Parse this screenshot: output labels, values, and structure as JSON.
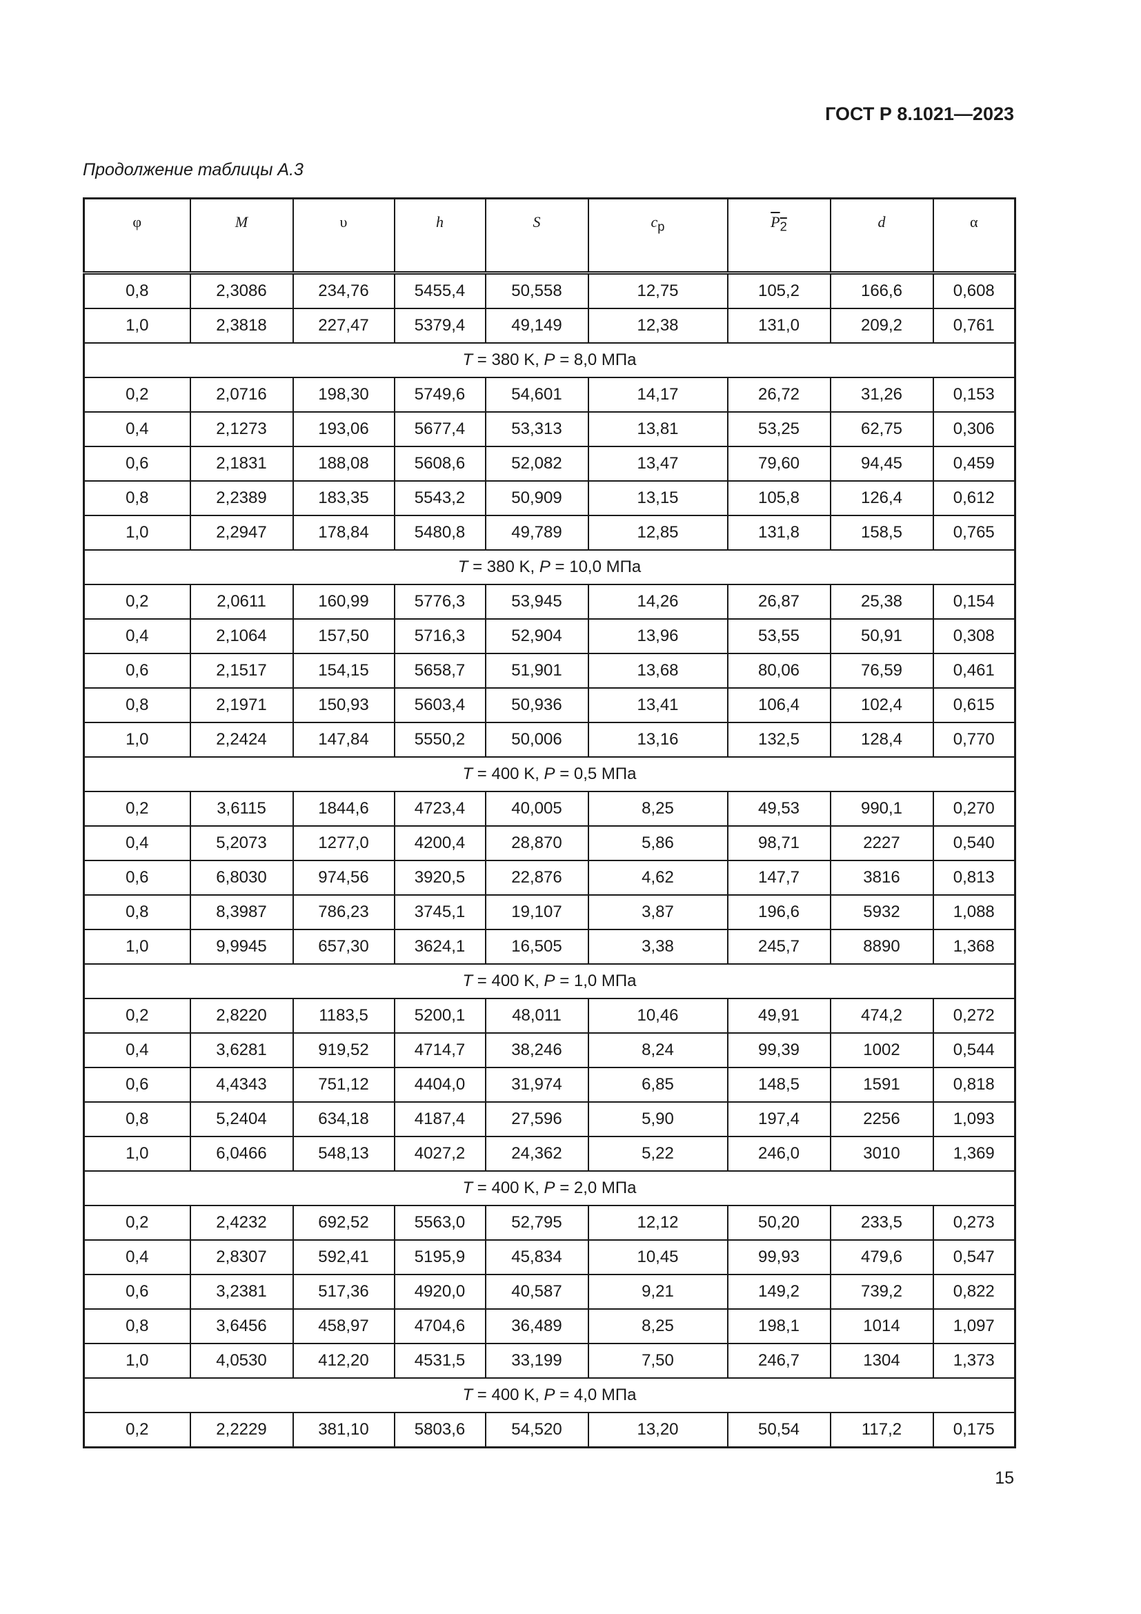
{
  "header": {
    "document_id": "ГОСТ Р 8.1021—2023"
  },
  "caption": "Продолжение таблицы А.3",
  "table": {
    "columns": [
      {
        "symbol": "φ",
        "sub": ""
      },
      {
        "symbol": "M",
        "sub": ""
      },
      {
        "symbol": "υ",
        "sub": ""
      },
      {
        "symbol": "h",
        "sub": ""
      },
      {
        "symbol": "S",
        "sub": ""
      },
      {
        "symbol": "c",
        "sub": "p"
      },
      {
        "symbol": "P",
        "sub": "2",
        "overline": true
      },
      {
        "symbol": "d",
        "sub": ""
      },
      {
        "symbol": "α",
        "sub": ""
      }
    ],
    "rows": [
      {
        "cells": [
          "0,8",
          "2,3086",
          "234,76",
          "5455,4",
          "50,558",
          "12,75",
          "105,2",
          "166,6",
          "0,608"
        ]
      },
      {
        "cells": [
          "1,0",
          "2,3818",
          "227,47",
          "5379,4",
          "49,149",
          "12,38",
          "131,0",
          "209,2",
          "0,761"
        ]
      },
      {
        "section": {
          "t_sym": "T",
          "t_val": " = 380 K, ",
          "p_sym": "P",
          "p_val": " = 8,0 МПа"
        }
      },
      {
        "cells": [
          "0,2",
          "2,0716",
          "198,30",
          "5749,6",
          "54,601",
          "14,17",
          "26,72",
          "31,26",
          "0,153"
        ]
      },
      {
        "cells": [
          "0,4",
          "2,1273",
          "193,06",
          "5677,4",
          "53,313",
          "13,81",
          "53,25",
          "62,75",
          "0,306"
        ]
      },
      {
        "cells": [
          "0,6",
          "2,1831",
          "188,08",
          "5608,6",
          "52,082",
          "13,47",
          "79,60",
          "94,45",
          "0,459"
        ]
      },
      {
        "cells": [
          "0,8",
          "2,2389",
          "183,35",
          "5543,2",
          "50,909",
          "13,15",
          "105,8",
          "126,4",
          "0,612"
        ]
      },
      {
        "cells": [
          "1,0",
          "2,2947",
          "178,84",
          "5480,8",
          "49,789",
          "12,85",
          "131,8",
          "158,5",
          "0,765"
        ]
      },
      {
        "section": {
          "t_sym": "T",
          "t_val": " = 380 K, ",
          "p_sym": "P",
          "p_val": " = 10,0 МПа"
        }
      },
      {
        "cells": [
          "0,2",
          "2,0611",
          "160,99",
          "5776,3",
          "53,945",
          "14,26",
          "26,87",
          "25,38",
          "0,154"
        ]
      },
      {
        "cells": [
          "0,4",
          "2,1064",
          "157,50",
          "5716,3",
          "52,904",
          "13,96",
          "53,55",
          "50,91",
          "0,308"
        ]
      },
      {
        "cells": [
          "0,6",
          "2,1517",
          "154,15",
          "5658,7",
          "51,901",
          "13,68",
          "80,06",
          "76,59",
          "0,461"
        ]
      },
      {
        "cells": [
          "0,8",
          "2,1971",
          "150,93",
          "5603,4",
          "50,936",
          "13,41",
          "106,4",
          "102,4",
          "0,615"
        ]
      },
      {
        "cells": [
          "1,0",
          "2,2424",
          "147,84",
          "5550,2",
          "50,006",
          "13,16",
          "132,5",
          "128,4",
          "0,770"
        ]
      },
      {
        "section": {
          "t_sym": "T",
          "t_val": " = 400 K, ",
          "p_sym": "P",
          "p_val": " = 0,5 МПа"
        }
      },
      {
        "cells": [
          "0,2",
          "3,6115",
          "1844,6",
          "4723,4",
          "40,005",
          "8,25",
          "49,53",
          "990,1",
          "0,270"
        ]
      },
      {
        "cells": [
          "0,4",
          "5,2073",
          "1277,0",
          "4200,4",
          "28,870",
          "5,86",
          "98,71",
          "2227",
          "0,540"
        ]
      },
      {
        "cells": [
          "0,6",
          "6,8030",
          "974,56",
          "3920,5",
          "22,876",
          "4,62",
          "147,7",
          "3816",
          "0,813"
        ]
      },
      {
        "cells": [
          "0,8",
          "8,3987",
          "786,23",
          "3745,1",
          "19,107",
          "3,87",
          "196,6",
          "5932",
          "1,088"
        ]
      },
      {
        "cells": [
          "1,0",
          "9,9945",
          "657,30",
          "3624,1",
          "16,505",
          "3,38",
          "245,7",
          "8890",
          "1,368"
        ]
      },
      {
        "section": {
          "t_sym": "T",
          "t_val": " = 400 K, ",
          "p_sym": "P",
          "p_val": " = 1,0 МПа"
        }
      },
      {
        "cells": [
          "0,2",
          "2,8220",
          "1183,5",
          "5200,1",
          "48,011",
          "10,46",
          "49,91",
          "474,2",
          "0,272"
        ]
      },
      {
        "cells": [
          "0,4",
          "3,6281",
          "919,52",
          "4714,7",
          "38,246",
          "8,24",
          "99,39",
          "1002",
          "0,544"
        ]
      },
      {
        "cells": [
          "0,6",
          "4,4343",
          "751,12",
          "4404,0",
          "31,974",
          "6,85",
          "148,5",
          "1591",
          "0,818"
        ]
      },
      {
        "cells": [
          "0,8",
          "5,2404",
          "634,18",
          "4187,4",
          "27,596",
          "5,90",
          "197,4",
          "2256",
          "1,093"
        ]
      },
      {
        "cells": [
          "1,0",
          "6,0466",
          "548,13",
          "4027,2",
          "24,362",
          "5,22",
          "246,0",
          "3010",
          "1,369"
        ]
      },
      {
        "section": {
          "t_sym": "T",
          "t_val": " = 400 K, ",
          "p_sym": "P",
          "p_val": " = 2,0 МПа"
        }
      },
      {
        "cells": [
          "0,2",
          "2,4232",
          "692,52",
          "5563,0",
          "52,795",
          "12,12",
          "50,20",
          "233,5",
          "0,273"
        ]
      },
      {
        "cells": [
          "0,4",
          "2,8307",
          "592,41",
          "5195,9",
          "45,834",
          "10,45",
          "99,93",
          "479,6",
          "0,547"
        ]
      },
      {
        "cells": [
          "0,6",
          "3,2381",
          "517,36",
          "4920,0",
          "40,587",
          "9,21",
          "149,2",
          "739,2",
          "0,822"
        ]
      },
      {
        "cells": [
          "0,8",
          "3,6456",
          "458,97",
          "4704,6",
          "36,489",
          "8,25",
          "198,1",
          "1014",
          "1,097"
        ]
      },
      {
        "cells": [
          "1,0",
          "4,0530",
          "412,20",
          "4531,5",
          "33,199",
          "7,50",
          "246,7",
          "1304",
          "1,373"
        ]
      },
      {
        "section": {
          "t_sym": "T",
          "t_val": " = 400 K, ",
          "p_sym": "P",
          "p_val": " = 4,0 МПа"
        }
      },
      {
        "cells": [
          "0,2",
          "2,2229",
          "381,10",
          "5803,6",
          "54,520",
          "13,20",
          "50,54",
          "117,2",
          "0,175"
        ]
      }
    ]
  },
  "footer": {
    "page_number": "15"
  }
}
